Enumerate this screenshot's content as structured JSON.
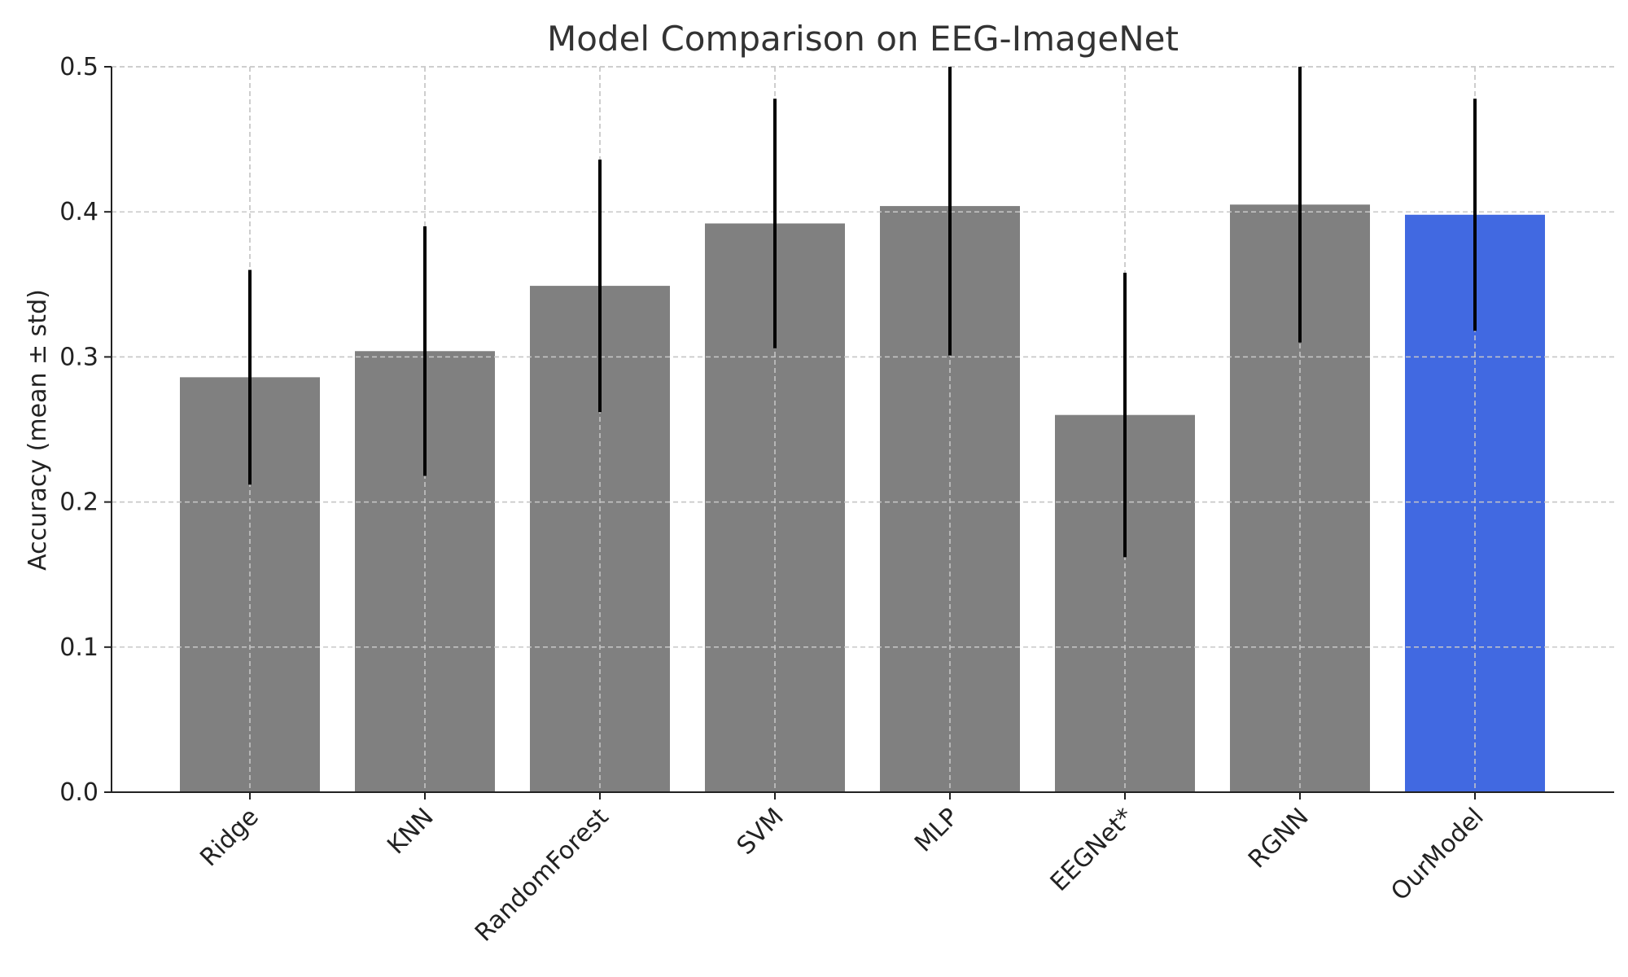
{
  "chart_data": {
    "type": "bar",
    "title": "Model Comparison on EEG-ImageNet",
    "xlabel": "",
    "ylabel": "Accuracy (mean ± std)",
    "ylim": [
      0,
      0.5
    ],
    "yticks": [
      "0.0",
      "0.1",
      "0.2",
      "0.3",
      "0.4",
      "0.5"
    ],
    "grid": true,
    "categories": [
      "Ridge",
      "KNN",
      "RandomForest",
      "SVM",
      "MLP",
      "EEGNet*",
      "RGNN",
      "OurModel"
    ],
    "values": [
      0.286,
      0.304,
      0.349,
      0.392,
      0.404,
      0.26,
      0.405,
      0.398
    ],
    "errors": [
      0.074,
      0.086,
      0.087,
      0.086,
      0.103,
      0.098,
      0.095,
      0.08
    ],
    "bar_color": "#808080",
    "highlight_color": "#4169e1",
    "highlight_category": "OurModel"
  }
}
